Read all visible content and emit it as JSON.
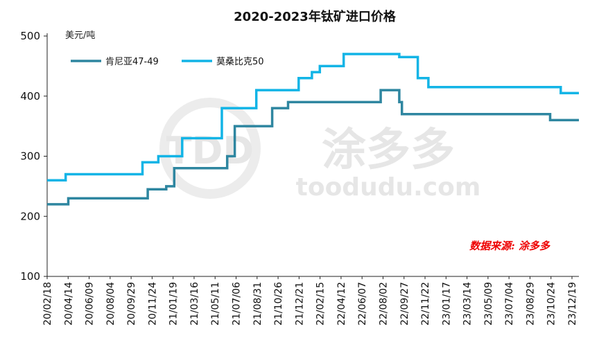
{
  "chart_data": {
    "type": "line",
    "title": "2020-2023年钛矿进口价格",
    "unit_label": "美元/吨",
    "ylim": [
      100,
      500
    ],
    "yticks": [
      100,
      200,
      300,
      400,
      500
    ],
    "xlim": [
      "2020/02/18",
      "2023/12/25"
    ],
    "xtick_labels": [
      "20/02/18",
      "20/04/14",
      "20/06/09",
      "20/08/04",
      "20/09/29",
      "20/11/24",
      "21/01/19",
      "21/03/16",
      "21/05/11",
      "21/07/06",
      "21/08/31",
      "21/10/26",
      "21/12/21",
      "22/02/15",
      "22/04/12",
      "22/06/07",
      "22/08/02",
      "22/09/27",
      "22/11/22",
      "23/01/17",
      "23/03/14",
      "23/05/09",
      "23/07/04",
      "23/08/29",
      "23/10/24",
      "23/12/19"
    ],
    "legend_position": "top-left",
    "step": true,
    "series": [
      {
        "name": "肯尼亚47-49",
        "color": "#2e86a0",
        "points": [
          [
            "2020/02/18",
            220
          ],
          [
            "2020/04/14",
            230
          ],
          [
            "2020/11/10",
            245
          ],
          [
            "2020/12/29",
            250
          ],
          [
            "2021/01/19",
            280
          ],
          [
            "2021/06/08",
            300
          ],
          [
            "2021/06/28",
            350
          ],
          [
            "2021/10/05",
            380
          ],
          [
            "2021/11/16",
            390
          ],
          [
            "2022/07/19",
            410
          ],
          [
            "2022/09/06",
            390
          ],
          [
            "2022/09/13",
            370
          ],
          [
            "2023/10/10",
            360
          ],
          [
            "2023/12/25",
            360
          ]
        ]
      },
      {
        "name": "莫桑比克50",
        "color": "#12b4e6",
        "points": [
          [
            "2020/02/18",
            260
          ],
          [
            "2020/04/07",
            270
          ],
          [
            "2020/10/27",
            290
          ],
          [
            "2020/12/08",
            300
          ],
          [
            "2021/02/09",
            330
          ],
          [
            "2021/05/25",
            380
          ],
          [
            "2021/08/24",
            410
          ],
          [
            "2021/12/14",
            430
          ],
          [
            "2022/01/18",
            440
          ],
          [
            "2022/02/08",
            450
          ],
          [
            "2022/04/12",
            470
          ],
          [
            "2022/09/06",
            465
          ],
          [
            "2022/10/25",
            430
          ],
          [
            "2022/11/22",
            415
          ],
          [
            "2023/11/07",
            405
          ],
          [
            "2023/12/25",
            405
          ]
        ]
      }
    ]
  },
  "watermark": {
    "brand": "涂多多",
    "url": "toodudu.com"
  },
  "source_note": "数据来源: 涂多多"
}
